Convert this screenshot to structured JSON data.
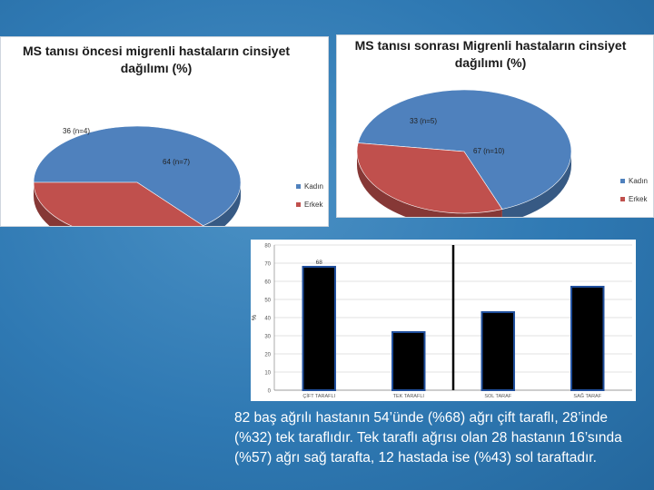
{
  "chart_data": [
    {
      "type": "pie",
      "title": "MS tanısı öncesi migrenli hastaların cinsiyet dağılımı (%)",
      "slices": [
        {
          "label": "Kadın",
          "value": 64,
          "data_label": "64 (n=7)",
          "color": "#4f81bd"
        },
        {
          "label": "Erkek",
          "value": 36,
          "data_label": "36 (n=4)",
          "color": "#c0504d"
        }
      ],
      "legend_position": "right"
    },
    {
      "type": "pie",
      "title": "MS tanısı sonrası Migrenli hastaların cinsiyet dağılımı (%)",
      "slices": [
        {
          "label": "Kadın",
          "value": 67,
          "data_label": "67 (n=10)",
          "color": "#4f81bd"
        },
        {
          "label": "Erkek",
          "value": 33,
          "data_label": "33 (n=5)",
          "color": "#c0504d"
        }
      ],
      "legend_position": "right"
    },
    {
      "type": "bar",
      "categories": [
        "ÇİFT TARAFLI",
        "TEK TARAFLI",
        "SOL TARAF",
        "SAĞ TARAF"
      ],
      "values": [
        68,
        32,
        43,
        57
      ],
      "data_labels": [
        "68",
        "",
        "",
        ""
      ],
      "ylabel": "%",
      "ylim": [
        0,
        80
      ],
      "yticks": [
        0,
        10,
        20,
        30,
        40,
        50,
        60,
        70,
        80
      ],
      "bar_color": "#000000",
      "bar_edge_color": "#1f4e9c",
      "separator_after_category": 1,
      "grid": true
    }
  ],
  "caption": "82 baş ağrılı hastanın 54’ünde (%68) ağrı çift taraflı, 28’inde (%32) tek taraflıdır. Tek taraflı ağrısı olan 28 hastanın 16’sında (%57) ağrı sağ tarafta, 12 hastada ise (%43) sol taraftadır."
}
